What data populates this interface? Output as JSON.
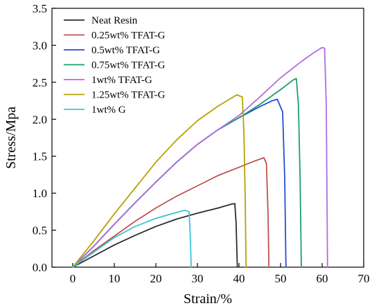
{
  "chart_data": {
    "type": "line",
    "title": "",
    "xlabel": "Strain/%",
    "ylabel": "Stress/Mpa",
    "xlim": [
      -5,
      70
    ],
    "ylim": [
      0,
      3.5
    ],
    "xticks": [
      "0",
      "10",
      "20",
      "30",
      "40",
      "50",
      "60",
      "70"
    ],
    "yticks": [
      "0.0",
      "0.5",
      "1.0",
      "1.5",
      "2.0",
      "2.5",
      "3.0",
      "3.5"
    ],
    "legend_position": "top-left",
    "grid": false,
    "series": [
      {
        "name": "Neat Resin",
        "color": "#2b2b2b",
        "points": [
          [
            0,
            0
          ],
          [
            5,
            0.15
          ],
          [
            10,
            0.3
          ],
          [
            15,
            0.43
          ],
          [
            20,
            0.55
          ],
          [
            25,
            0.65
          ],
          [
            30,
            0.73
          ],
          [
            35,
            0.8
          ],
          [
            38,
            0.85
          ],
          [
            39,
            0.86
          ],
          [
            39.3,
            0.6
          ],
          [
            39.6,
            0.0
          ]
        ]
      },
      {
        "name": "0.25wt% TFAT-G",
        "color": "#c0504d",
        "points": [
          [
            0,
            0
          ],
          [
            5,
            0.22
          ],
          [
            10,
            0.42
          ],
          [
            15,
            0.62
          ],
          [
            20,
            0.8
          ],
          [
            25,
            0.96
          ],
          [
            30,
            1.1
          ],
          [
            35,
            1.24
          ],
          [
            40,
            1.35
          ],
          [
            44,
            1.44
          ],
          [
            46,
            1.48
          ],
          [
            46.6,
            1.4
          ],
          [
            47,
            0.7
          ],
          [
            47.2,
            0.0
          ]
        ]
      },
      {
        "name": "0.5wt% TFAT-G",
        "color": "#1f4ed8",
        "points": [
          [
            0,
            0
          ],
          [
            5,
            0.28
          ],
          [
            10,
            0.58
          ],
          [
            15,
            0.87
          ],
          [
            20,
            1.15
          ],
          [
            25,
            1.42
          ],
          [
            30,
            1.66
          ],
          [
            35,
            1.86
          ],
          [
            40,
            2.02
          ],
          [
            45,
            2.17
          ],
          [
            48,
            2.25
          ],
          [
            49.2,
            2.27
          ],
          [
            50.5,
            2.1
          ],
          [
            51,
            1.2
          ],
          [
            51.3,
            0.0
          ]
        ]
      },
      {
        "name": "0.75wt% TFAT-G",
        "color": "#1e9e6a",
        "points": [
          [
            0,
            0
          ],
          [
            5,
            0.28
          ],
          [
            10,
            0.58
          ],
          [
            15,
            0.87
          ],
          [
            20,
            1.15
          ],
          [
            25,
            1.42
          ],
          [
            30,
            1.66
          ],
          [
            35,
            1.86
          ],
          [
            40,
            2.02
          ],
          [
            45,
            2.2
          ],
          [
            50,
            2.4
          ],
          [
            53,
            2.53
          ],
          [
            53.8,
            2.55
          ],
          [
            54.3,
            2.2
          ],
          [
            54.7,
            1.2
          ],
          [
            55,
            0.0
          ]
        ]
      },
      {
        "name": "1wt% TFAT-G",
        "color": "#b06ce0",
        "points": [
          [
            0,
            0
          ],
          [
            5,
            0.28
          ],
          [
            10,
            0.58
          ],
          [
            15,
            0.87
          ],
          [
            20,
            1.15
          ],
          [
            25,
            1.42
          ],
          [
            30,
            1.66
          ],
          [
            35,
            1.86
          ],
          [
            40,
            2.05
          ],
          [
            45,
            2.3
          ],
          [
            50,
            2.56
          ],
          [
            55,
            2.78
          ],
          [
            58,
            2.9
          ],
          [
            60,
            2.97
          ],
          [
            60.6,
            2.96
          ],
          [
            61,
            2.2
          ],
          [
            61.3,
            0.0
          ]
        ]
      },
      {
        "name": "1.25wt% TFAT-G",
        "color": "#b8a000",
        "points": [
          [
            0,
            0
          ],
          [
            5,
            0.35
          ],
          [
            10,
            0.72
          ],
          [
            15,
            1.07
          ],
          [
            20,
            1.42
          ],
          [
            25,
            1.72
          ],
          [
            30,
            1.98
          ],
          [
            35,
            2.18
          ],
          [
            38,
            2.28
          ],
          [
            39.5,
            2.33
          ],
          [
            40.8,
            2.3
          ],
          [
            41.2,
            1.8
          ],
          [
            41.5,
            0.9
          ],
          [
            41.7,
            0.0
          ]
        ]
      },
      {
        "name": "1wt% G",
        "color": "#3cc4d8",
        "points": [
          [
            0,
            0
          ],
          [
            5,
            0.2
          ],
          [
            10,
            0.4
          ],
          [
            15,
            0.55
          ],
          [
            20,
            0.66
          ],
          [
            25,
            0.74
          ],
          [
            27,
            0.77
          ],
          [
            28,
            0.75
          ],
          [
            28.3,
            0.4
          ],
          [
            28.5,
            0.0
          ]
        ]
      }
    ]
  }
}
